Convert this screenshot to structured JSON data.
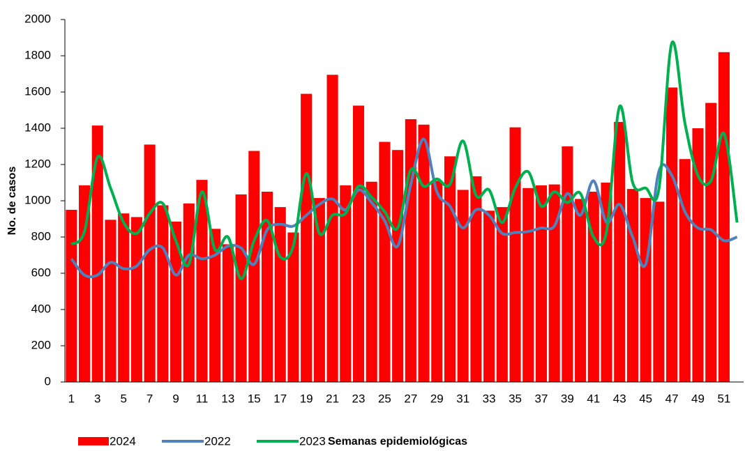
{
  "chart_data": {
    "type": "bar",
    "y_label": "No. de casos",
    "x_label": "Semanas epidemiológicas",
    "categories": [
      1,
      null,
      3,
      null,
      5,
      null,
      7,
      null,
      9,
      null,
      11,
      null,
      13,
      null,
      15,
      null,
      17,
      null,
      19,
      null,
      21,
      null,
      23,
      null,
      25,
      null,
      27,
      null,
      29,
      null,
      31,
      null,
      33,
      null,
      35,
      null,
      37,
      null,
      39,
      null,
      41,
      null,
      43,
      null,
      45,
      null,
      47,
      null,
      49,
      null,
      51,
      null
    ],
    "series": [
      {
        "name": "2024",
        "type": "bar",
        "color": "#ff0000",
        "values": [
          950,
          1085,
          1415,
          895,
          930,
          910,
          1310,
          975,
          885,
          985,
          1115,
          845,
          760,
          1035,
          1275,
          1050,
          965,
          825,
          1590,
          1015,
          1695,
          1085,
          1525,
          1105,
          1325,
          1280,
          1450,
          1420,
          1110,
          1245,
          1060,
          1135,
          945,
          965,
          1405,
          1070,
          1085,
          1090,
          1300,
          1010,
          1050,
          1100,
          1435,
          1065,
          1015,
          995,
          1625,
          1230,
          1400,
          1540,
          1820,
          null
        ]
      },
      {
        "name": "2022",
        "type": "line",
        "color": "#4f81bd",
        "values": [
          680,
          590,
          590,
          660,
          625,
          640,
          730,
          740,
          590,
          700,
          680,
          700,
          750,
          740,
          650,
          840,
          870,
          860,
          920,
          980,
          1010,
          950,
          1060,
          990,
          890,
          750,
          1090,
          1340,
          1050,
          970,
          850,
          950,
          920,
          820,
          825,
          830,
          850,
          860,
          1040,
          920,
          1110,
          880,
          980,
          800,
          650,
          1160,
          1140,
          940,
          850,
          840,
          780,
          800
        ]
      },
      {
        "name": "2023",
        "type": "line",
        "color": "#00b050",
        "values": [
          760,
          830,
          1240,
          1070,
          880,
          820,
          930,
          985,
          780,
          650,
          1050,
          730,
          800,
          570,
          780,
          890,
          690,
          750,
          1150,
          820,
          920,
          930,
          1080,
          1020,
          940,
          850,
          1170,
          1080,
          1120,
          1090,
          1330,
          1030,
          1060,
          880,
          1070,
          1160,
          970,
          1050,
          990,
          1040,
          800,
          830,
          1520,
          1100,
          1070,
          1060,
          1870,
          1430,
          1140,
          1110,
          1370,
          880
        ]
      }
    ],
    "ylim": [
      0,
      2000
    ],
    "yticks": [
      0,
      200,
      400,
      600,
      800,
      1000,
      1200,
      1400,
      1600,
      1800,
      2000
    ]
  }
}
